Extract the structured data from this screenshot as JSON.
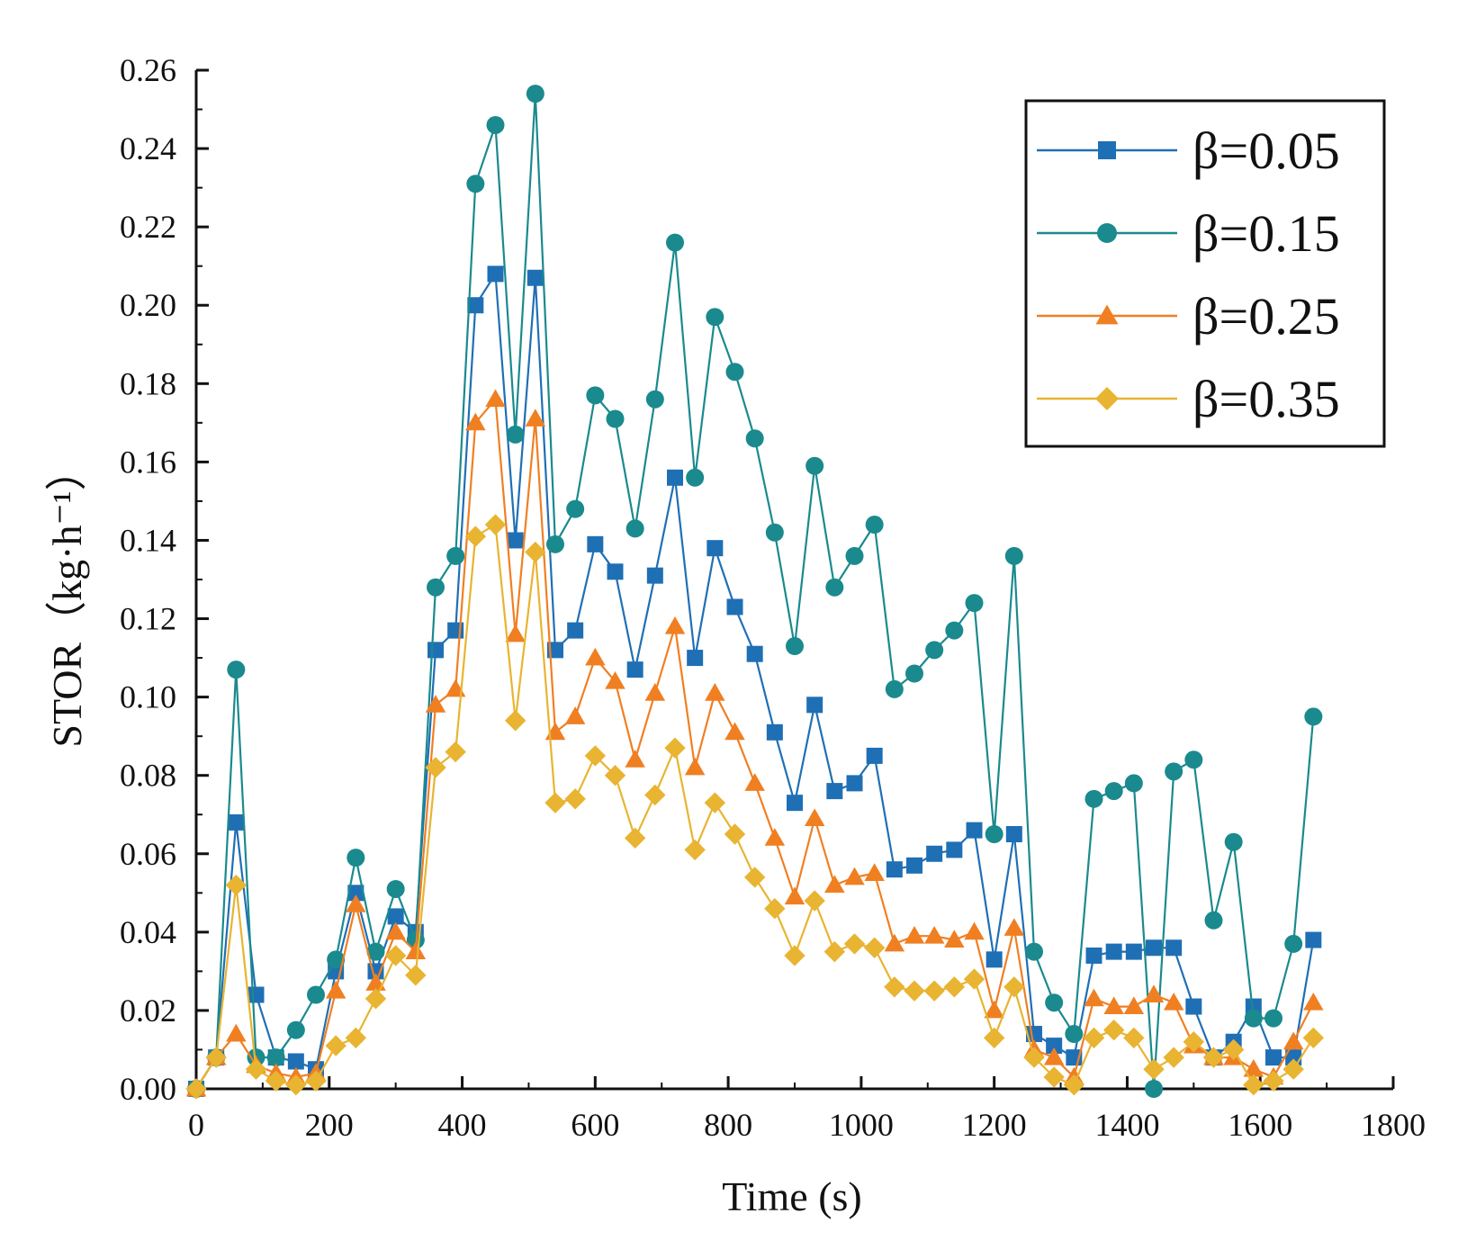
{
  "chart_data": {
    "type": "line",
    "xlabel": "Time (s)",
    "ylabel": "STOR（kg·h⁻¹）",
    "xlim": [
      0,
      1800
    ],
    "ylim": [
      0,
      0.26
    ],
    "xticks": [
      "0",
      "200",
      "400",
      "600",
      "800",
      "1000",
      "1200",
      "1400",
      "1600",
      "1800"
    ],
    "yticks": [
      "0.00",
      "0.02",
      "0.04",
      "0.06",
      "0.08",
      "0.10",
      "0.12",
      "0.14",
      "0.16",
      "0.18",
      "0.20",
      "0.22",
      "0.24",
      "0.26"
    ],
    "grid": false,
    "legend_position": "top-right",
    "x": [
      0,
      30,
      60,
      90,
      120,
      150,
      180,
      210,
      240,
      270,
      300,
      330,
      360,
      390,
      420,
      450,
      480,
      510,
      540,
      570,
      600,
      630,
      660,
      690,
      720,
      750,
      780,
      810,
      840,
      870,
      900,
      930,
      960,
      990,
      1020,
      1050,
      1080,
      1110,
      1140,
      1170,
      1200,
      1230,
      1260,
      1290,
      1320,
      1350,
      1380,
      1410,
      1440,
      1470,
      1500,
      1530,
      1560,
      1590,
      1620,
      1650,
      1680
    ],
    "series": [
      {
        "name": "β=0.05",
        "color": "#1f6fb5",
        "marker": "square",
        "values": [
          0,
          0.008,
          0.068,
          0.024,
          0.008,
          0.007,
          0.005,
          0.03,
          0.05,
          0.03,
          0.044,
          0.04,
          0.112,
          0.117,
          0.2,
          0.208,
          0.14,
          0.207,
          0.112,
          0.117,
          0.139,
          0.132,
          0.107,
          0.131,
          0.156,
          0.11,
          0.138,
          0.123,
          0.111,
          0.091,
          0.073,
          0.098,
          0.076,
          0.078,
          0.085,
          0.056,
          0.057,
          0.06,
          0.061,
          0.066,
          0.033,
          0.065,
          0.014,
          0.011,
          0.008,
          0.034,
          0.035,
          0.035,
          0.036,
          0.036,
          0.021,
          0.008,
          0.012,
          0.021,
          0.008,
          0.008,
          0.038
        ]
      },
      {
        "name": "β=0.15",
        "color": "#1a8a8e",
        "marker": "circle",
        "values": [
          0,
          0.008,
          0.107,
          0.008,
          0.008,
          0.015,
          0.024,
          0.033,
          0.059,
          0.035,
          0.051,
          0.038,
          0.128,
          0.136,
          0.231,
          0.246,
          0.167,
          0.254,
          0.139,
          0.148,
          0.177,
          0.171,
          0.143,
          0.176,
          0.216,
          0.156,
          0.197,
          0.183,
          0.166,
          0.142,
          0.113,
          0.159,
          0.128,
          0.136,
          0.144,
          0.102,
          0.106,
          0.112,
          0.117,
          0.124,
          0.065,
          0.136,
          0.035,
          0.022,
          0.014,
          0.074,
          0.076,
          0.078,
          0.0,
          0.081,
          0.084,
          0.043,
          0.063,
          0.018,
          0.018,
          0.037,
          0.095
        ]
      },
      {
        "name": "β=0.25",
        "color": "#f07f22",
        "marker": "triangle",
        "values": [
          0,
          0.008,
          0.014,
          0.006,
          0.004,
          0.003,
          0.004,
          0.025,
          0.047,
          0.027,
          0.04,
          0.035,
          0.098,
          0.102,
          0.17,
          0.176,
          0.116,
          0.171,
          0.091,
          0.095,
          0.11,
          0.104,
          0.084,
          0.101,
          0.118,
          0.082,
          0.101,
          0.091,
          0.078,
          0.064,
          0.049,
          0.069,
          0.052,
          0.054,
          0.055,
          0.037,
          0.039,
          0.039,
          0.038,
          0.04,
          0.02,
          0.041,
          0.01,
          0.008,
          0.003,
          0.023,
          0.021,
          0.021,
          0.024,
          0.022,
          0.011,
          0.008,
          0.008,
          0.005,
          0.003,
          0.012,
          0.022
        ]
      },
      {
        "name": "β=0.35",
        "color": "#e8b431",
        "marker": "diamond",
        "values": [
          0,
          0.008,
          0.052,
          0.005,
          0.002,
          0.001,
          0.002,
          0.011,
          0.013,
          0.023,
          0.034,
          0.029,
          0.082,
          0.086,
          0.141,
          0.144,
          0.094,
          0.137,
          0.073,
          0.074,
          0.085,
          0.08,
          0.064,
          0.075,
          0.087,
          0.061,
          0.073,
          0.065,
          0.054,
          0.046,
          0.034,
          0.048,
          0.035,
          0.037,
          0.036,
          0.026,
          0.025,
          0.025,
          0.026,
          0.028,
          0.013,
          0.026,
          0.008,
          0.003,
          0.001,
          0.013,
          0.015,
          0.013,
          0.005,
          0.008,
          0.012,
          0.008,
          0.01,
          0.001,
          0.002,
          0.005,
          0.013
        ]
      }
    ]
  }
}
